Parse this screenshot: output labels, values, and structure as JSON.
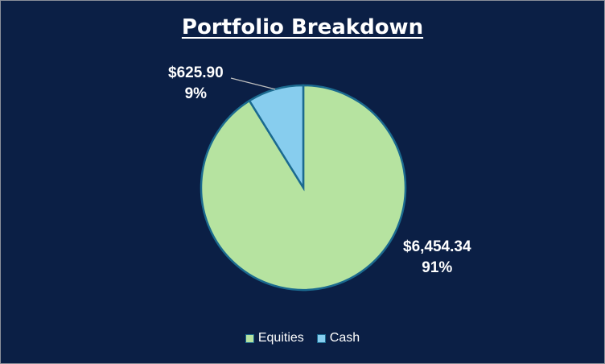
{
  "chart_data": {
    "type": "pie",
    "title": "Portfolio Breakdown",
    "slices": [
      {
        "name": "Equities",
        "value": 6454.34,
        "value_label": "$6,454.34",
        "percent_label": "91%",
        "color": "#b6e3a0"
      },
      {
        "name": "Cash",
        "value": 625.9,
        "value_label": "$625.90",
        "percent_label": "9%",
        "color": "#87cdee"
      }
    ],
    "legend_position": "bottom",
    "edge_color": "#1b6a8f",
    "background": "#0b1f45"
  }
}
